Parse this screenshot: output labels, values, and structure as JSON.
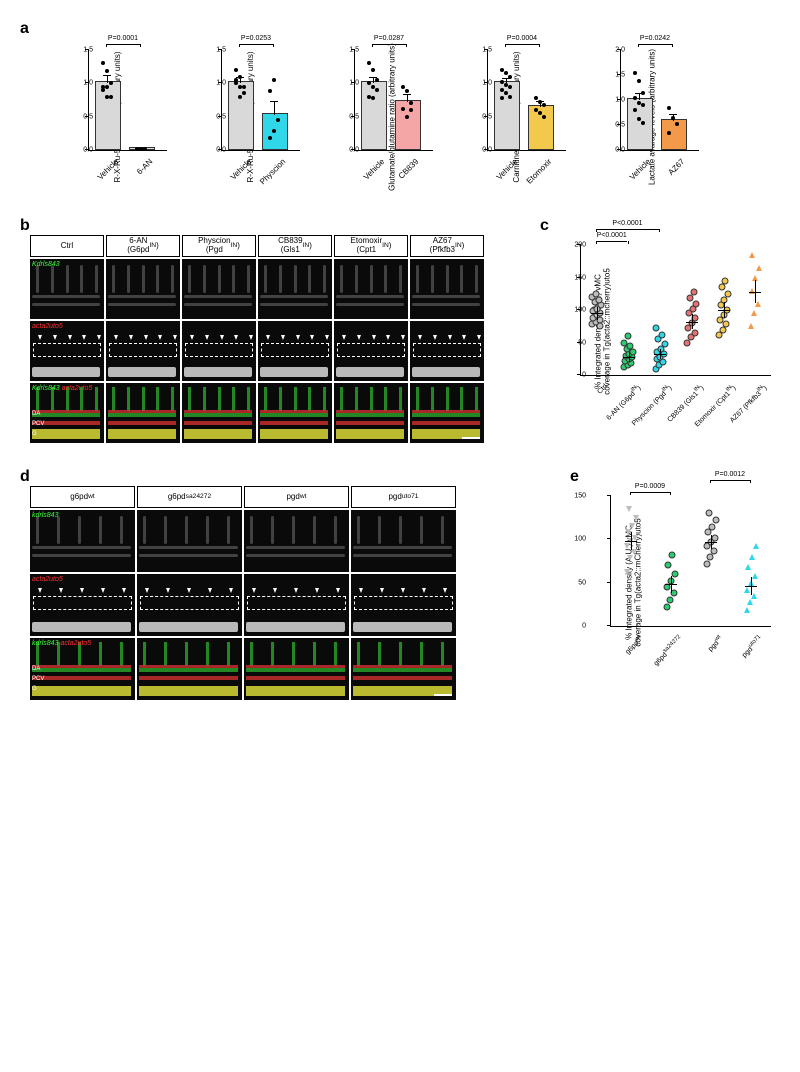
{
  "panel_a": {
    "label": "a",
    "charts": [
      {
        "ylabel": "R-X-Ru-5P/G6P ratio\n(arbitrary units)",
        "ymax": 1.5,
        "yticks": [
          0,
          0.5,
          1.0,
          1.5
        ],
        "pvalue": "P=0.0001",
        "categories": [
          "Vehicle",
          "6-AN"
        ],
        "bars": [
          {
            "value": 1.0,
            "color": "#d9d9d9"
          },
          {
            "value": 0.02,
            "color": "#d9d9d9"
          }
        ],
        "dots": [
          [
            0.95,
            1.18,
            1.01,
            1.3,
            0.95,
            0.8,
            0.9,
            0.8
          ],
          [
            0.02,
            0.01,
            0.02,
            0.01,
            0.02
          ]
        ],
        "err": [
          0.12,
          0.005
        ]
      },
      {
        "ylabel": "R-X-Ru-5P/G6P ratio\n(arbitrary units)",
        "ymax": 1.5,
        "yticks": [
          0,
          0.5,
          1.0,
          1.5
        ],
        "pvalue": "P=0.0253",
        "categories": [
          "Vehicle",
          "Physcion"
        ],
        "bars": [
          {
            "value": 1.0,
            "color": "#d9d9d9"
          },
          {
            "value": 0.52,
            "color": "#2fd7e9"
          }
        ],
        "dots": [
          [
            1.2,
            1.1,
            0.95,
            1.05,
            0.8,
            0.85,
            1.0,
            0.95
          ],
          [
            0.18,
            0.28,
            0.45,
            0.88,
            1.05
          ]
        ],
        "err": [
          0.1,
          0.22
        ]
      },
      {
        "ylabel": "Glutamate/glutamine ratio\n(arbitrary units)",
        "ymax": 1.5,
        "yticks": [
          0,
          0.5,
          1.0,
          1.5
        ],
        "pvalue": "P=0.0287",
        "categories": [
          "Vehicle",
          "CB839"
        ],
        "bars": [
          {
            "value": 1.0,
            "color": "#d9d9d9"
          },
          {
            "value": 0.72,
            "color": "#f4a6a6"
          }
        ],
        "dots": [
          [
            1.3,
            1.2,
            1.05,
            1.0,
            0.95,
            0.9,
            0.8,
            0.78
          ],
          [
            0.95,
            0.88,
            0.7,
            0.62,
            0.5,
            0.6
          ]
        ],
        "err": [
          0.1,
          0.12
        ]
      },
      {
        "ylabel": "Carnitine-C2/C0 ratio\n(arbitrary units)",
        "ymax": 1.5,
        "yticks": [
          0,
          0.5,
          1.0,
          1.5
        ],
        "pvalue": "P=0.0004",
        "categories": [
          "Vehicle",
          "Etomoxir"
        ],
        "bars": [
          {
            "value": 1.0,
            "color": "#d9d9d9"
          },
          {
            "value": 0.65,
            "color": "#f2c94c"
          }
        ],
        "dots": [
          [
            1.2,
            1.15,
            1.1,
            1.02,
            0.98,
            0.95,
            0.9,
            0.85,
            0.8,
            0.78
          ],
          [
            0.78,
            0.72,
            0.68,
            0.6,
            0.55,
            0.5
          ]
        ],
        "err": [
          0.08,
          0.08
        ]
      },
      {
        "ylabel": "Lactate avarage\nlevels (arbitrary units)",
        "ymax": 2.0,
        "yticks": [
          0,
          0.5,
          1.0,
          1.5,
          2.0
        ],
        "pvalue": "P=0.0242",
        "categories": [
          "Vehicle",
          "AZ67"
        ],
        "bars": [
          {
            "value": 1.0,
            "color": "#d9d9d9"
          },
          {
            "value": 0.58,
            "color": "#f2994a"
          }
        ],
        "dots": [
          [
            1.55,
            1.38,
            1.15,
            1.05,
            0.95,
            0.9,
            0.8,
            0.62,
            0.55
          ],
          [
            0.85,
            0.65,
            0.52,
            0.35
          ]
        ],
        "err": [
          0.15,
          0.15
        ]
      }
    ]
  },
  "panel_b": {
    "label": "b",
    "headers": [
      "Ctrl",
      "6-AN\n(G6pdIN)",
      "Physcion\n(PgdIN)",
      "CB839\n(Gls1IN)",
      "Etomoxir\n(Cpt1IN)",
      "AZ67\n(Pfkfb3IN)"
    ],
    "row_labels": [
      "Kdrls843",
      "acta2uto5",
      "Kdrls843 acta2uto5"
    ],
    "region_labels": [
      "DA",
      "PCV",
      "G"
    ]
  },
  "panel_c": {
    "label": "c",
    "ylabel": "% Integrated density (A.U.) vMC\ncoverage in Tg(acta2::mcherry)uto5",
    "ymax": 200,
    "yticks": [
      0,
      50,
      100,
      150,
      200
    ],
    "categories": [
      "Ctrl",
      "6-AN (G6pdIN)",
      "Physcion (PgdIN)",
      "CB839 (Gls1IN)",
      "Etomoxir (Cpt1IN)",
      "AZ67 (Pfkfb3IN)"
    ],
    "p_annotations": [
      {
        "from": 0,
        "to": 1,
        "text": "P<0.0001"
      },
      {
        "from": 0,
        "to": 2,
        "text": "P<0.0001"
      }
    ],
    "groups": [
      {
        "color": "#bdbdbd",
        "mean": 95,
        "err": 10,
        "points": [
          78,
          82,
          85,
          88,
          92,
          95,
          100,
          105,
          108,
          112,
          115,
          120,
          125,
          75,
          98,
          102
        ]
      },
      {
        "color": "#2ecc71",
        "mean": 28,
        "err": 8,
        "points": [
          12,
          15,
          18,
          22,
          25,
          28,
          30,
          32,
          36,
          40,
          45,
          50,
          60
        ]
      },
      {
        "color": "#2fd7e9",
        "mean": 32,
        "err": 8,
        "points": [
          10,
          15,
          20,
          25,
          28,
          32,
          36,
          40,
          48,
          55,
          62,
          72
        ]
      },
      {
        "color": "#e57373",
        "mean": 82,
        "err": 12,
        "points": [
          50,
          58,
          65,
          72,
          80,
          88,
          95,
          102,
          110,
          118,
          128
        ]
      },
      {
        "color": "#f2c94c",
        "mean": 100,
        "err": 12,
        "points": [
          62,
          70,
          78,
          85,
          92,
          100,
          108,
          116,
          125,
          135,
          145
        ]
      },
      {
        "color": "#f2994a",
        "mean": 128,
        "err": 18,
        "points": [
          75,
          95,
          110,
          130,
          150,
          165,
          185
        ],
        "triangles": true
      }
    ]
  },
  "panel_d": {
    "label": "d",
    "headers": [
      "g6pdwt",
      "g6pdsa24272",
      "pgdwt",
      "pgduto71"
    ],
    "row_labels": [
      "kdrls843",
      "acta2uto5",
      "Kdrls843 acta2uto5"
    ],
    "region_labels": [
      "DA",
      "PCV",
      "G"
    ]
  },
  "panel_e": {
    "label": "e",
    "ylabel": "% Integrated density (A.U.) vMC\ncoverage in Tg(acta2::mCherry)uto5",
    "ymax": 150,
    "yticks": [
      0,
      50,
      100,
      150
    ],
    "categories": [
      "g6pdwt",
      "g6pdsa24272",
      "pgdwt",
      "pgduto71"
    ],
    "p_annotations": [
      {
        "from": 0,
        "to": 1,
        "text": "P=0.0009"
      },
      {
        "from": 2,
        "to": 3,
        "text": "P=0.0012"
      }
    ],
    "groups": [
      {
        "color": "#bdbdbd",
        "mean": 98,
        "err": 10,
        "points": [
          62,
          78,
          85,
          92,
          98,
          102,
          108,
          115,
          125,
          135
        ],
        "triangles": true,
        "tri_up": false
      },
      {
        "color": "#2ecc71",
        "mean": 48,
        "err": 10,
        "points": [
          22,
          30,
          38,
          45,
          52,
          60,
          70,
          82
        ]
      },
      {
        "color": "#bdbdbd",
        "mean": 97,
        "err": 8,
        "points": [
          72,
          80,
          86,
          92,
          97,
          102,
          108,
          114,
          122,
          130
        ]
      },
      {
        "color": "#2fd7e9",
        "mean": 46,
        "err": 10,
        "points": [
          18,
          28,
          35,
          42,
          50,
          58,
          68,
          80,
          92
        ],
        "triangles": true,
        "tri_up": true
      }
    ]
  }
}
